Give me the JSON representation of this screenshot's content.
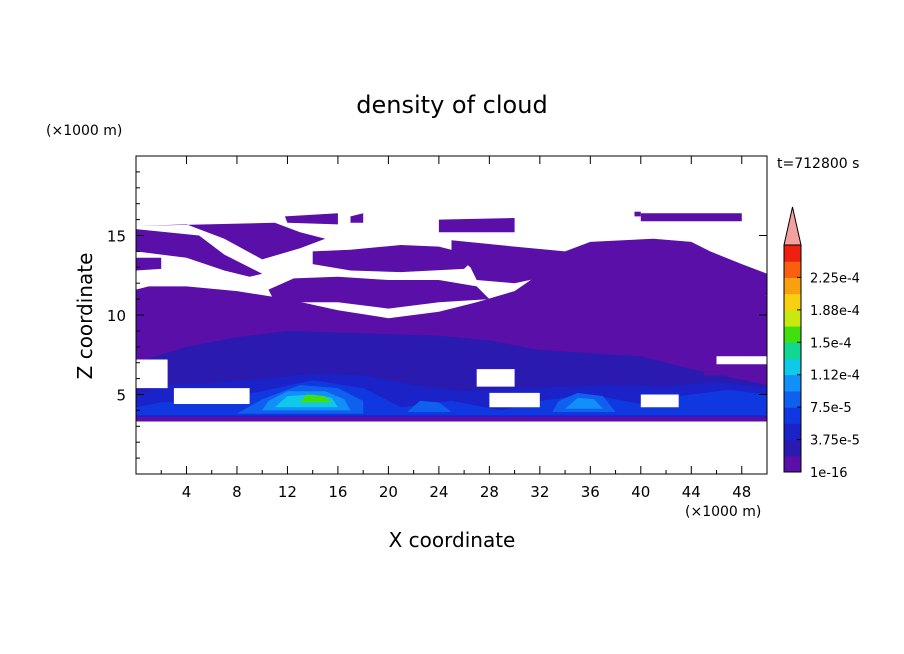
{
  "chart_data": {
    "type": "heatmap",
    "title": "density of cloud",
    "xlabel": "X coordinate",
    "ylabel": "Z coordinate",
    "x_unit": "(×1000 m)",
    "y_unit": "(×1000 m)",
    "time_label": "t=712800 s",
    "xlim": [
      0,
      50
    ],
    "ylim": [
      0,
      20
    ],
    "x_ticks": [
      4,
      8,
      12,
      16,
      20,
      24,
      28,
      32,
      36,
      40,
      44,
      48
    ],
    "y_ticks": [
      5,
      10,
      15
    ],
    "colorbar": {
      "levels": [
        {
          "value": 1e-16,
          "color": "#5a0fa8"
        },
        {
          "value": 1.875e-05,
          "color": "#2a1ab0"
        },
        {
          "value": 3.75e-05,
          "color": "#1a22c8"
        },
        {
          "value": 5.625e-05,
          "color": "#1038e0"
        },
        {
          "value": 7.5e-05,
          "color": "#1060f0"
        },
        {
          "value": 9.375e-05,
          "color": "#1090f8"
        },
        {
          "value": 0.000112,
          "color": "#10c8e8"
        },
        {
          "value": 0.000131,
          "color": "#10d890"
        },
        {
          "value": 0.00015,
          "color": "#40e010"
        },
        {
          "value": 0.000169,
          "color": "#c8e810"
        },
        {
          "value": 0.000188,
          "color": "#f8d010"
        },
        {
          "value": 0.000206,
          "color": "#f8a010"
        },
        {
          "value": 0.000225,
          "color": "#f86010"
        },
        {
          "value": 0.000244,
          "color": "#f02010"
        }
      ],
      "tick_labels": [
        "1e-16",
        "3.75e-5",
        "7.5e-5",
        "1.12e-4",
        "1.5e-4",
        "1.88e-4",
        "2.25e-4"
      ],
      "extend_color": "#f4a0a0"
    },
    "regions": [
      {
        "level": 0,
        "pts": [
          [
            0,
            3.3
          ],
          [
            50,
            3.3
          ],
          [
            50,
            11.2
          ],
          [
            44,
            11.8
          ],
          [
            41,
            12.4
          ],
          [
            38,
            13.3
          ],
          [
            36,
            14.3
          ],
          [
            34.5,
            13.8
          ],
          [
            32,
            12.6
          ],
          [
            30,
            11.5
          ],
          [
            27,
            10.8
          ],
          [
            24,
            10.2
          ],
          [
            20,
            9.8
          ],
          [
            16,
            10.3
          ],
          [
            12,
            11.0
          ],
          [
            8,
            11.5
          ],
          [
            4,
            11.8
          ],
          [
            1,
            11.8
          ],
          [
            0,
            11.6
          ]
        ]
      },
      {
        "level": 0,
        "pts": [
          [
            0,
            14.0
          ],
          [
            4,
            13.6
          ],
          [
            7,
            12.8
          ],
          [
            9,
            12.4
          ],
          [
            10,
            12.6
          ],
          [
            7,
            13.8
          ],
          [
            5,
            15.0
          ],
          [
            0,
            15.4
          ]
        ]
      },
      {
        "level": 0,
        "pts": [
          [
            0,
            15.6
          ],
          [
            11,
            15.8
          ],
          [
            13,
            15.2
          ],
          [
            15,
            14.8
          ],
          [
            13,
            14.2
          ],
          [
            10,
            13.5
          ],
          [
            7,
            14.8
          ],
          [
            4,
            15.7
          ]
        ]
      },
      {
        "level": 0,
        "pts": [
          [
            0,
            12.8
          ],
          [
            2,
            12.9
          ],
          [
            2,
            13.6
          ],
          [
            0,
            13.6
          ]
        ]
      },
      {
        "level": 0,
        "pts": [
          [
            11,
            10.8
          ],
          [
            16,
            10.8
          ],
          [
            20,
            10.4
          ],
          [
            24,
            10.8
          ],
          [
            28,
            11.0
          ],
          [
            27,
            11.8
          ],
          [
            24,
            12.2
          ],
          [
            20,
            12.2
          ],
          [
            16,
            12.4
          ],
          [
            12.5,
            12.3
          ],
          [
            10.5,
            11.6
          ]
        ]
      },
      {
        "level": 0,
        "pts": [
          [
            14,
            13.2
          ],
          [
            17,
            12.8
          ],
          [
            21,
            12.7
          ],
          [
            26,
            12.9
          ],
          [
            27,
            13.7
          ],
          [
            24,
            14.3
          ],
          [
            21,
            14.4
          ],
          [
            17,
            14.1
          ],
          [
            14,
            14.0
          ]
        ]
      },
      {
        "level": 0,
        "pts": [
          [
            25,
            14.7
          ],
          [
            30,
            14.3
          ],
          [
            34,
            14.0
          ],
          [
            36,
            14.6
          ],
          [
            41,
            14.8
          ],
          [
            44,
            14.6
          ],
          [
            45.5,
            14.0
          ],
          [
            48,
            13.2
          ],
          [
            50,
            12.6
          ],
          [
            50,
            11.2
          ],
          [
            46,
            11.4
          ],
          [
            42,
            12.0
          ],
          [
            39,
            12.8
          ],
          [
            36,
            13.5
          ],
          [
            33,
            12.5
          ],
          [
            30,
            12.0
          ],
          [
            27,
            12.2
          ],
          [
            26.5,
            13.0
          ],
          [
            25,
            13.9
          ]
        ]
      },
      {
        "level": 0,
        "pts": [
          [
            10,
            15.0
          ],
          [
            12,
            14.9
          ],
          [
            12,
            15.4
          ],
          [
            10,
            15.4
          ]
        ]
      },
      {
        "level": 0,
        "pts": [
          [
            11.8,
            16.2
          ],
          [
            16,
            16.4
          ],
          [
            16,
            15.7
          ],
          [
            12,
            15.8
          ]
        ]
      },
      {
        "level": 0,
        "pts": [
          [
            17,
            16.2
          ],
          [
            18,
            16.4
          ],
          [
            18,
            15.8
          ],
          [
            17,
            15.8
          ]
        ]
      },
      {
        "level": 0,
        "pts": [
          [
            24,
            16.0
          ],
          [
            30,
            16.1
          ],
          [
            30,
            15.2
          ],
          [
            24,
            15.2
          ]
        ]
      },
      {
        "level": 0,
        "pts": [
          [
            40,
            16.4
          ],
          [
            48,
            16.4
          ],
          [
            48,
            15.9
          ],
          [
            40,
            15.9
          ]
        ]
      },
      {
        "level": 0,
        "pts": [
          [
            39.5,
            16.5
          ],
          [
            40,
            16.5
          ],
          [
            40,
            16.2
          ],
          [
            39.5,
            16.2
          ]
        ]
      },
      {
        "level": 1,
        "pts": [
          [
            0,
            3.6
          ],
          [
            50,
            3.6
          ],
          [
            50,
            5.6
          ],
          [
            44,
            6.6
          ],
          [
            40,
            7.4
          ],
          [
            36,
            7.6
          ],
          [
            32,
            7.8
          ],
          [
            28,
            8.4
          ],
          [
            24,
            8.7
          ],
          [
            20,
            8.8
          ],
          [
            16,
            8.9
          ],
          [
            12,
            9.0
          ],
          [
            8,
            8.6
          ],
          [
            4,
            8.0
          ],
          [
            0,
            7.0
          ]
        ]
      },
      {
        "level": 2,
        "pts": [
          [
            0,
            3.6
          ],
          [
            50,
            3.6
          ],
          [
            50,
            5.4
          ],
          [
            46,
            5.8
          ],
          [
            42,
            5.5
          ],
          [
            38,
            5.6
          ],
          [
            34,
            5.5
          ],
          [
            30,
            5.4
          ],
          [
            26,
            5.2
          ],
          [
            22,
            5.6
          ],
          [
            18,
            6.2
          ],
          [
            14,
            6.3
          ],
          [
            10,
            6.0
          ],
          [
            6,
            5.7
          ],
          [
            2,
            5.6
          ],
          [
            0,
            5.0
          ]
        ]
      },
      {
        "level": 3,
        "pts": [
          [
            0,
            3.7
          ],
          [
            50,
            3.7
          ],
          [
            50,
            5.0
          ],
          [
            47,
            5.3
          ],
          [
            43,
            4.9
          ],
          [
            40,
            4.4
          ],
          [
            36,
            5.0
          ],
          [
            32,
            4.6
          ],
          [
            29,
            4.0
          ],
          [
            25,
            4.6
          ],
          [
            21,
            4.2
          ],
          [
            18,
            5.4
          ],
          [
            14,
            5.9
          ],
          [
            10,
            5.2
          ],
          [
            6,
            4.6
          ],
          [
            2,
            4.5
          ],
          [
            0,
            4.2
          ]
        ]
      },
      {
        "level": 4,
        "pts": [
          [
            8,
            3.8
          ],
          [
            18,
            3.8
          ],
          [
            18,
            4.6
          ],
          [
            16,
            5.4
          ],
          [
            13,
            5.6
          ],
          [
            10,
            4.7
          ]
        ]
      },
      {
        "level": 5,
        "pts": [
          [
            10,
            4.0
          ],
          [
            17,
            4.0
          ],
          [
            16.5,
            4.7
          ],
          [
            15,
            5.2
          ],
          [
            12,
            5.2
          ],
          [
            10.5,
            4.6
          ]
        ]
      },
      {
        "level": 6,
        "pts": [
          [
            11,
            4.2
          ],
          [
            16,
            4.2
          ],
          [
            15.5,
            4.8
          ],
          [
            14,
            5.0
          ],
          [
            12,
            4.9
          ]
        ]
      },
      {
        "level": 8,
        "pts": [
          [
            13,
            4.5
          ],
          [
            15.5,
            4.5
          ],
          [
            15,
            4.9
          ],
          [
            13.5,
            5.0
          ]
        ]
      },
      {
        "level": 4,
        "pts": [
          [
            33,
            3.9
          ],
          [
            38,
            3.9
          ],
          [
            37,
            4.9
          ],
          [
            35,
            5.1
          ],
          [
            33.5,
            4.6
          ]
        ]
      },
      {
        "level": 5,
        "pts": [
          [
            34,
            4.1
          ],
          [
            37,
            4.1
          ],
          [
            36.3,
            4.7
          ],
          [
            35,
            4.8
          ]
        ]
      },
      {
        "level": 4,
        "pts": [
          [
            21.5,
            3.9
          ],
          [
            25,
            3.9
          ],
          [
            24,
            4.5
          ],
          [
            22.5,
            4.6
          ]
        ]
      },
      {
        "level": 0,
        "pts": [
          [
            45,
            6.2
          ],
          [
            49,
            6.2
          ],
          [
            49,
            6.9
          ],
          [
            45,
            6.9
          ]
        ]
      }
    ],
    "holes": [
      {
        "pts": [
          [
            3,
            4.4
          ],
          [
            9,
            4.4
          ],
          [
            9,
            5.4
          ],
          [
            3,
            5.4
          ]
        ]
      },
      {
        "pts": [
          [
            28,
            4.2
          ],
          [
            32,
            4.2
          ],
          [
            32,
            5.1
          ],
          [
            28,
            5.1
          ]
        ]
      },
      {
        "pts": [
          [
            40,
            4.2
          ],
          [
            43,
            4.2
          ],
          [
            43,
            5.0
          ],
          [
            40,
            5.0
          ]
        ]
      },
      {
        "pts": [
          [
            0,
            5.4
          ],
          [
            2.5,
            5.4
          ],
          [
            2.5,
            7.2
          ],
          [
            0,
            7.2
          ]
        ]
      },
      {
        "pts": [
          [
            46,
            6.9
          ],
          [
            50,
            6.9
          ],
          [
            50,
            7.4
          ],
          [
            46,
            7.4
          ]
        ]
      },
      {
        "pts": [
          [
            27,
            5.5
          ],
          [
            30,
            5.5
          ],
          [
            30,
            6.6
          ],
          [
            27,
            6.6
          ]
        ]
      }
    ]
  }
}
